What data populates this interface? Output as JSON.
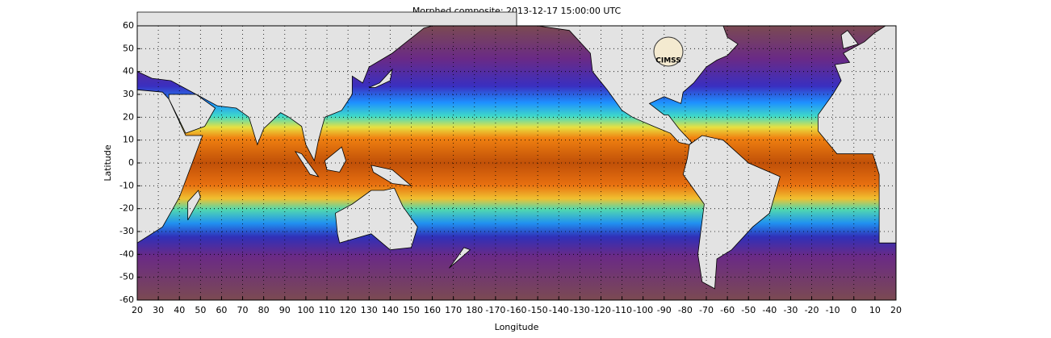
{
  "title": "Morphed composite: 2013-12-17 15:00:00 UTC",
  "map": {
    "x_label": "Longitude",
    "y_label": "Latitude",
    "lon_ticks": [
      20,
      30,
      40,
      50,
      60,
      70,
      80,
      90,
      100,
      110,
      120,
      130,
      140,
      150,
      160,
      170,
      180,
      -170,
      -160,
      -150,
      -140,
      -130,
      -120,
      -110,
      -100,
      -90,
      -80,
      -70,
      -60,
      -50,
      -40,
      -30,
      -20,
      -10,
      0,
      10,
      20
    ],
    "lat_ticks": [
      60,
      50,
      40,
      30,
      20,
      10,
      0,
      -10,
      -20,
      -30,
      -40,
      -50,
      -60
    ],
    "logo": "CIMSS"
  }
}
